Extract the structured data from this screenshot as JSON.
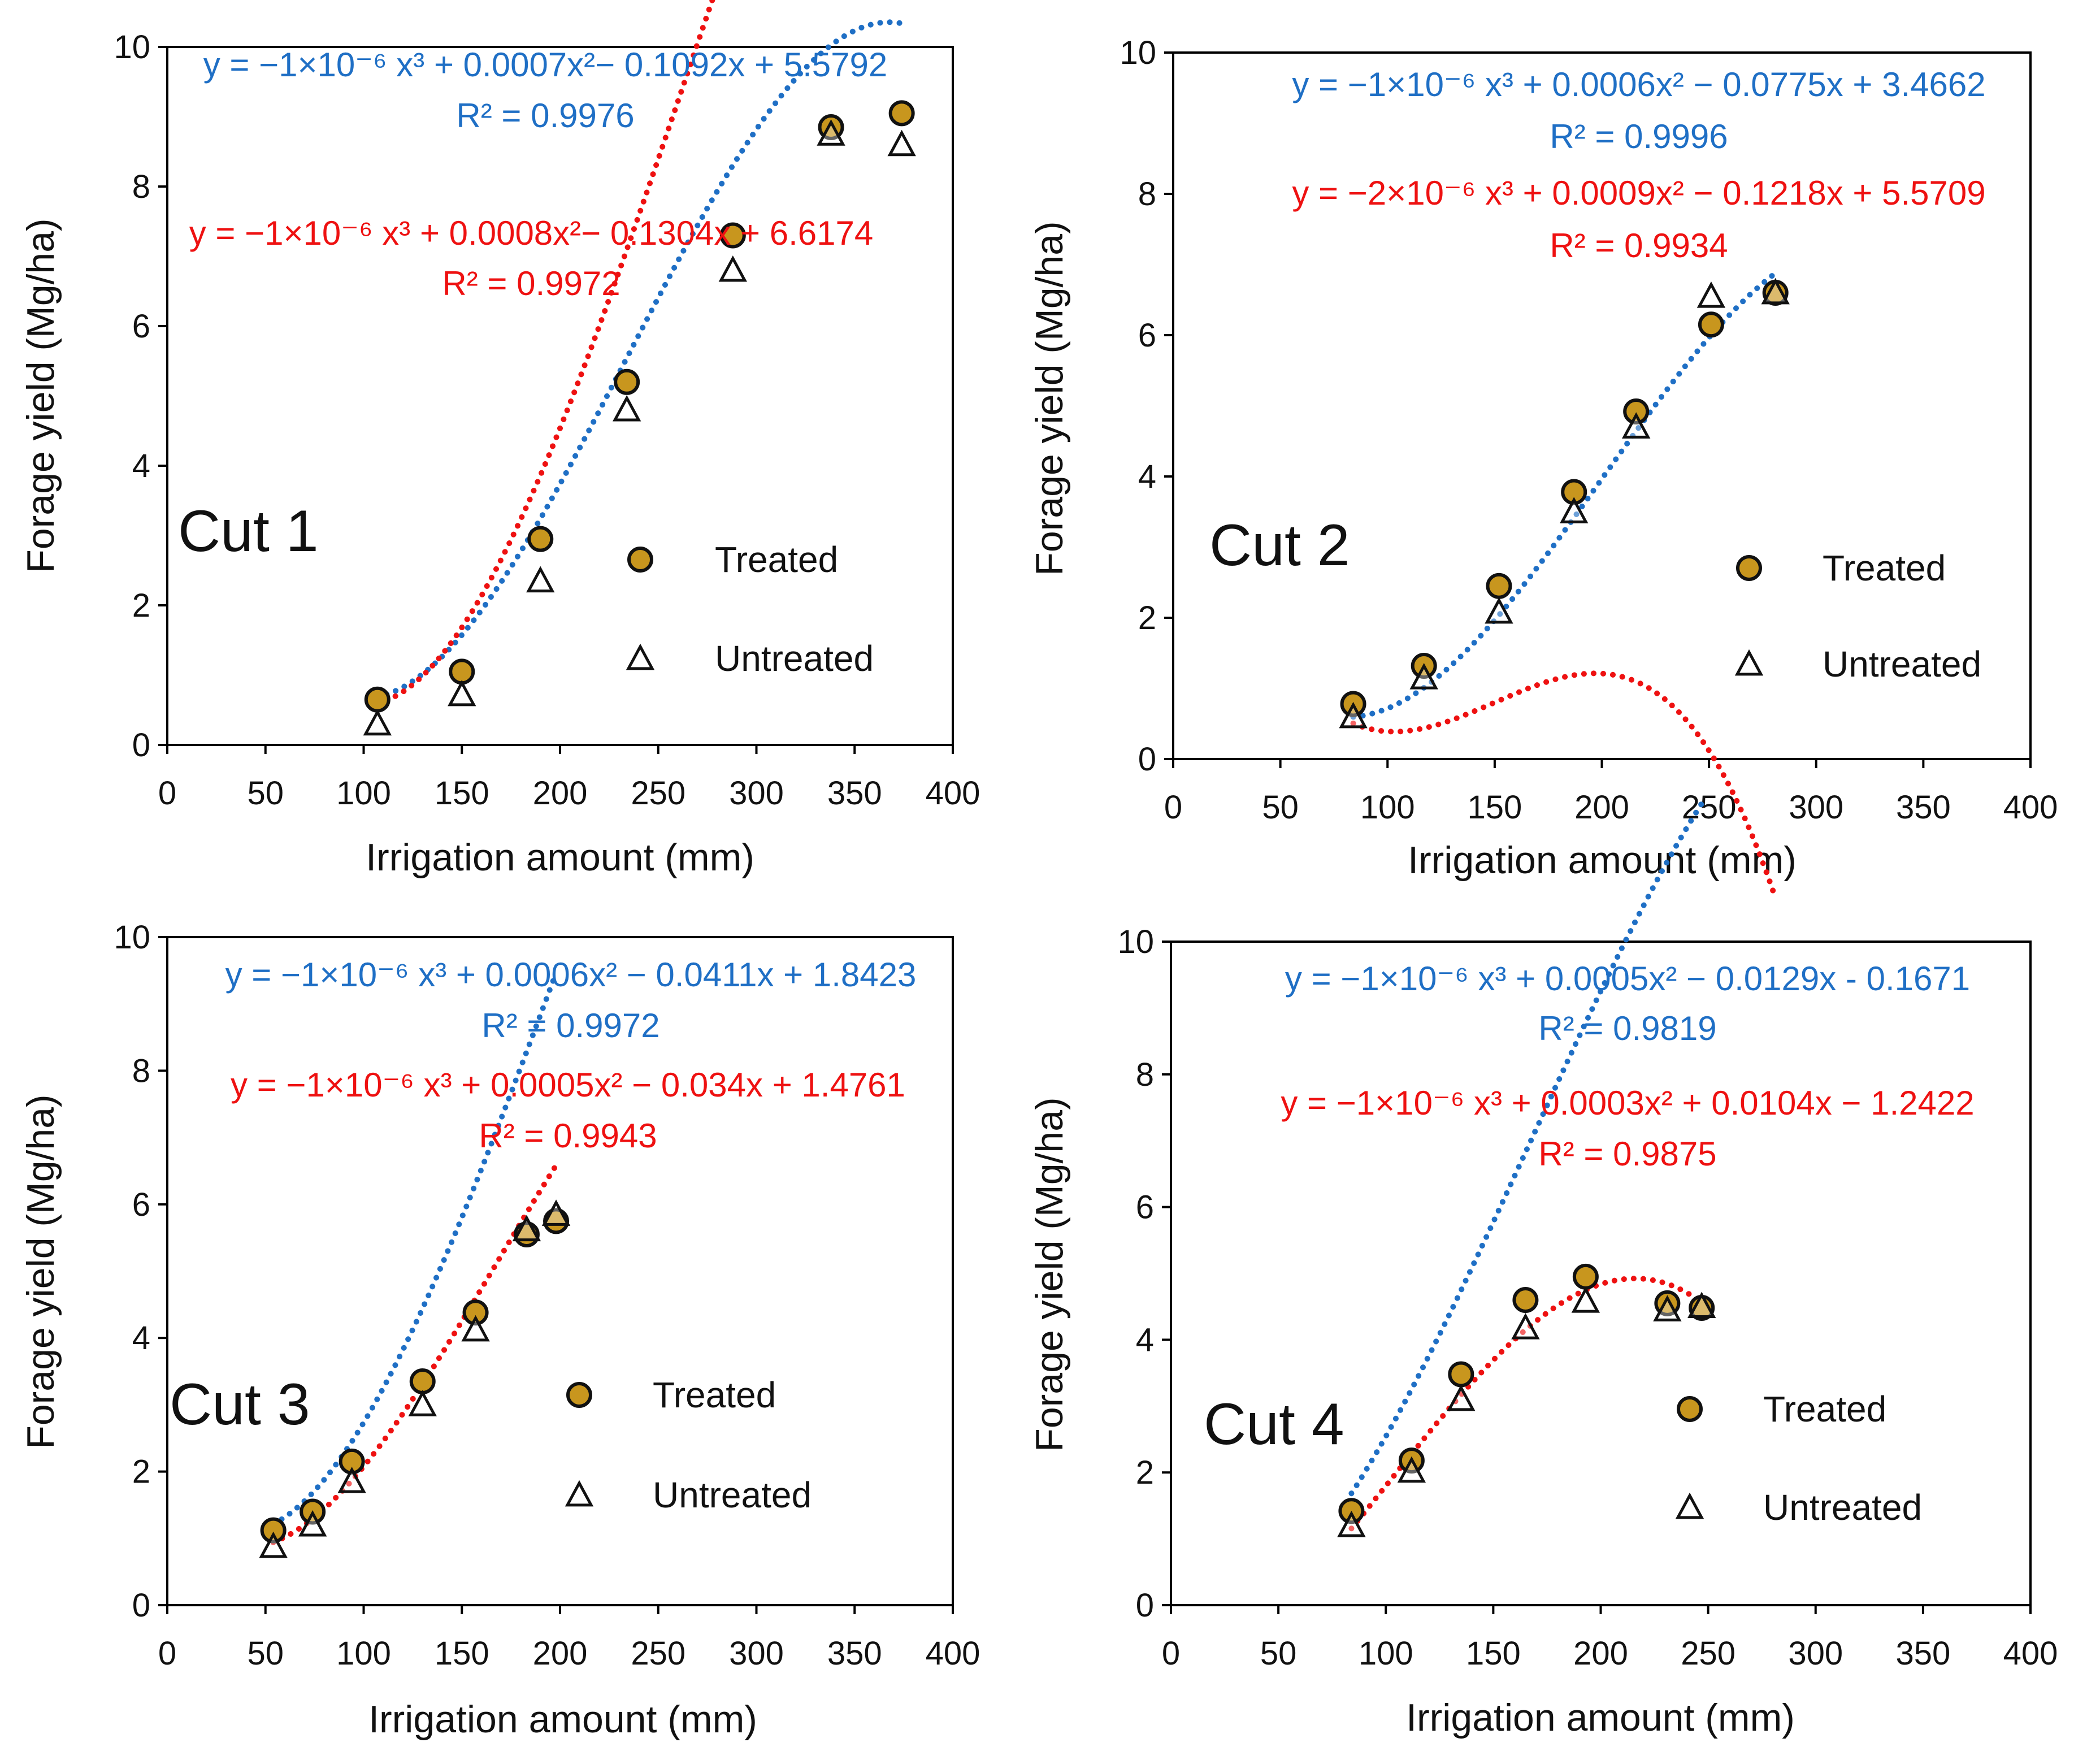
{
  "colors": {
    "treated_marker": "#C8961E",
    "treated_fit": "#1f6fc5",
    "untreated_fit": "#ee1111",
    "axis": "#000000"
  },
  "chart_data": [
    {
      "type": "scatter",
      "panel_label": "Cut 1",
      "xlabel": "Irrigation amount (mm)",
      "ylabel": "Forage yield (Mg/ha)",
      "xlim": [
        0,
        400
      ],
      "ylim": [
        0,
        10
      ],
      "xticks": [
        0,
        50,
        100,
        150,
        200,
        250,
        300,
        350,
        400
      ],
      "yticks": [
        0,
        2,
        4,
        6,
        8,
        10
      ],
      "legend": [
        "Treated",
        "Untreated"
      ],
      "series": [
        {
          "name": "Treated",
          "marker": "circle",
          "x": [
            107,
            150,
            190,
            234,
            288,
            338,
            374
          ],
          "y": [
            0.65,
            1.05,
            2.95,
            5.2,
            7.3,
            8.85,
            9.05
          ]
        },
        {
          "name": "Untreated",
          "marker": "triangle",
          "x": [
            107,
            150,
            190,
            234,
            288,
            338,
            374
          ],
          "y": [
            0.3,
            0.72,
            2.35,
            4.8,
            6.8,
            8.75,
            8.6
          ]
        }
      ],
      "fits": [
        {
          "series": "Treated",
          "equation": "y = −1×10⁻⁶ x³ + 0.0007x²− 0.1092x + 5.5792",
          "r2": "R² = 0.9976",
          "coef": [
            -1e-06,
            0.0007,
            -0.1092,
            5.5792
          ]
        },
        {
          "series": "Untreated",
          "equation": "y = −1×10⁻⁶ x³ + 0.0008x²− 0.1304x + 6.6174",
          "r2": "R² = 0.9972",
          "coef": [
            -1e-06,
            0.0008,
            -0.1304,
            6.6174
          ]
        }
      ]
    },
    {
      "type": "scatter",
      "panel_label": "Cut 2",
      "xlabel": "Irrigation amount (mm)",
      "ylabel": "Forage yield (Mg/ha)",
      "xlim": [
        0,
        400
      ],
      "ylim": [
        0,
        10
      ],
      "xticks": [
        0,
        50,
        100,
        150,
        200,
        250,
        300,
        350,
        400
      ],
      "yticks": [
        0,
        2,
        4,
        6,
        8,
        10
      ],
      "legend": [
        "Treated",
        "Untreated"
      ],
      "series": [
        {
          "name": "Treated",
          "marker": "circle",
          "x": [
            84,
            117,
            152,
            187,
            216,
            251,
            281
          ],
          "y": [
            0.78,
            1.32,
            2.45,
            3.78,
            4.92,
            6.15,
            6.6
          ]
        },
        {
          "name": "Untreated",
          "marker": "triangle",
          "x": [
            84,
            117,
            152,
            187,
            216,
            251,
            281
          ],
          "y": [
            0.6,
            1.15,
            2.08,
            3.5,
            4.7,
            6.55,
            6.6
          ]
        }
      ],
      "fits": [
        {
          "series": "Treated",
          "equation": "y = −1×10⁻⁶ x³ + 0.0006x² − 0.0775x + 3.4662",
          "r2": "R² = 0.9996",
          "coef": [
            -1e-06,
            0.0006,
            -0.0775,
            3.4662
          ]
        },
        {
          "series": "Untreated",
          "equation": "y = −2×10⁻⁶ x³ + 0.0009x² − 0.1218x + 5.5709",
          "r2": "R² = 0.9934",
          "coef": [
            -2e-06,
            0.0009,
            -0.1218,
            5.5709
          ]
        }
      ]
    },
    {
      "type": "scatter",
      "panel_label": "Cut 3",
      "xlabel": "Irrigation amount (mm)",
      "ylabel": "Forage yield (Mg/ha)",
      "xlim": [
        0,
        400
      ],
      "ylim": [
        0,
        10
      ],
      "xticks": [
        0,
        50,
        100,
        150,
        200,
        250,
        300,
        350,
        400
      ],
      "yticks": [
        0,
        2,
        4,
        6,
        8,
        10
      ],
      "legend": [
        "Treated",
        "Untreated"
      ],
      "series": [
        {
          "name": "Treated",
          "marker": "circle",
          "x": [
            54,
            74,
            94,
            130,
            157,
            183,
            198
          ],
          "y": [
            1.12,
            1.4,
            2.15,
            3.35,
            4.38,
            5.55,
            5.75
          ]
        },
        {
          "name": "Untreated",
          "marker": "triangle",
          "x": [
            54,
            74,
            94,
            130,
            157,
            183,
            198
          ],
          "y": [
            0.88,
            1.2,
            1.85,
            3.0,
            4.12,
            5.62,
            5.85
          ]
        }
      ],
      "fits": [
        {
          "series": "Treated",
          "equation": "y = −1×10⁻⁶ x³ + 0.0006x² − 0.0411x + 1.8423",
          "r2": "R² = 0.9972",
          "coef": [
            -1e-06,
            0.0006,
            -0.0411,
            1.8423
          ]
        },
        {
          "series": "Untreated",
          "equation": "y = −1×10⁻⁶ x³ + 0.0005x² − 0.034x + 1.4761",
          "r2": "R² = 0.9943",
          "coef": [
            -1e-06,
            0.0005,
            -0.034,
            1.4761
          ]
        }
      ]
    },
    {
      "type": "scatter",
      "panel_label": "Cut 4",
      "xlabel": "Irrigation amount (mm)",
      "ylabel": "Forage yield (Mg/ha)",
      "xlim": [
        0,
        400
      ],
      "ylim": [
        0,
        10
      ],
      "xticks": [
        0,
        50,
        100,
        150,
        200,
        250,
        300,
        350,
        400
      ],
      "yticks": [
        0,
        2,
        4,
        6,
        8,
        10
      ],
      "legend": [
        "Treated",
        "Untreated"
      ],
      "series": [
        {
          "name": "Treated",
          "marker": "circle",
          "x": [
            84,
            112,
            135,
            165,
            193,
            231,
            247
          ],
          "y": [
            1.42,
            2.18,
            3.48,
            4.6,
            4.95,
            4.55,
            4.48
          ]
        },
        {
          "name": "Untreated",
          "marker": "triangle",
          "x": [
            84,
            112,
            135,
            165,
            193,
            231,
            247
          ],
          "y": [
            1.2,
            2.02,
            3.1,
            4.18,
            4.58,
            4.45,
            4.5
          ]
        }
      ],
      "fits": [
        {
          "series": "Treated",
          "equation": "y = −1×10⁻⁶ x³ + 0.0005x² − 0.0129x - 0.1671",
          "r2": "R² = 0.9819",
          "coef": [
            -1e-06,
            0.0005,
            -0.0129,
            -0.1671
          ]
        },
        {
          "series": "Untreated",
          "equation": "y = −1×10⁻⁶ x³ + 0.0003x² + 0.0104x − 1.2422",
          "r2": "R² = 0.9875",
          "coef": [
            -1e-06,
            0.0003,
            0.0104,
            -1.2422
          ]
        }
      ]
    }
  ]
}
